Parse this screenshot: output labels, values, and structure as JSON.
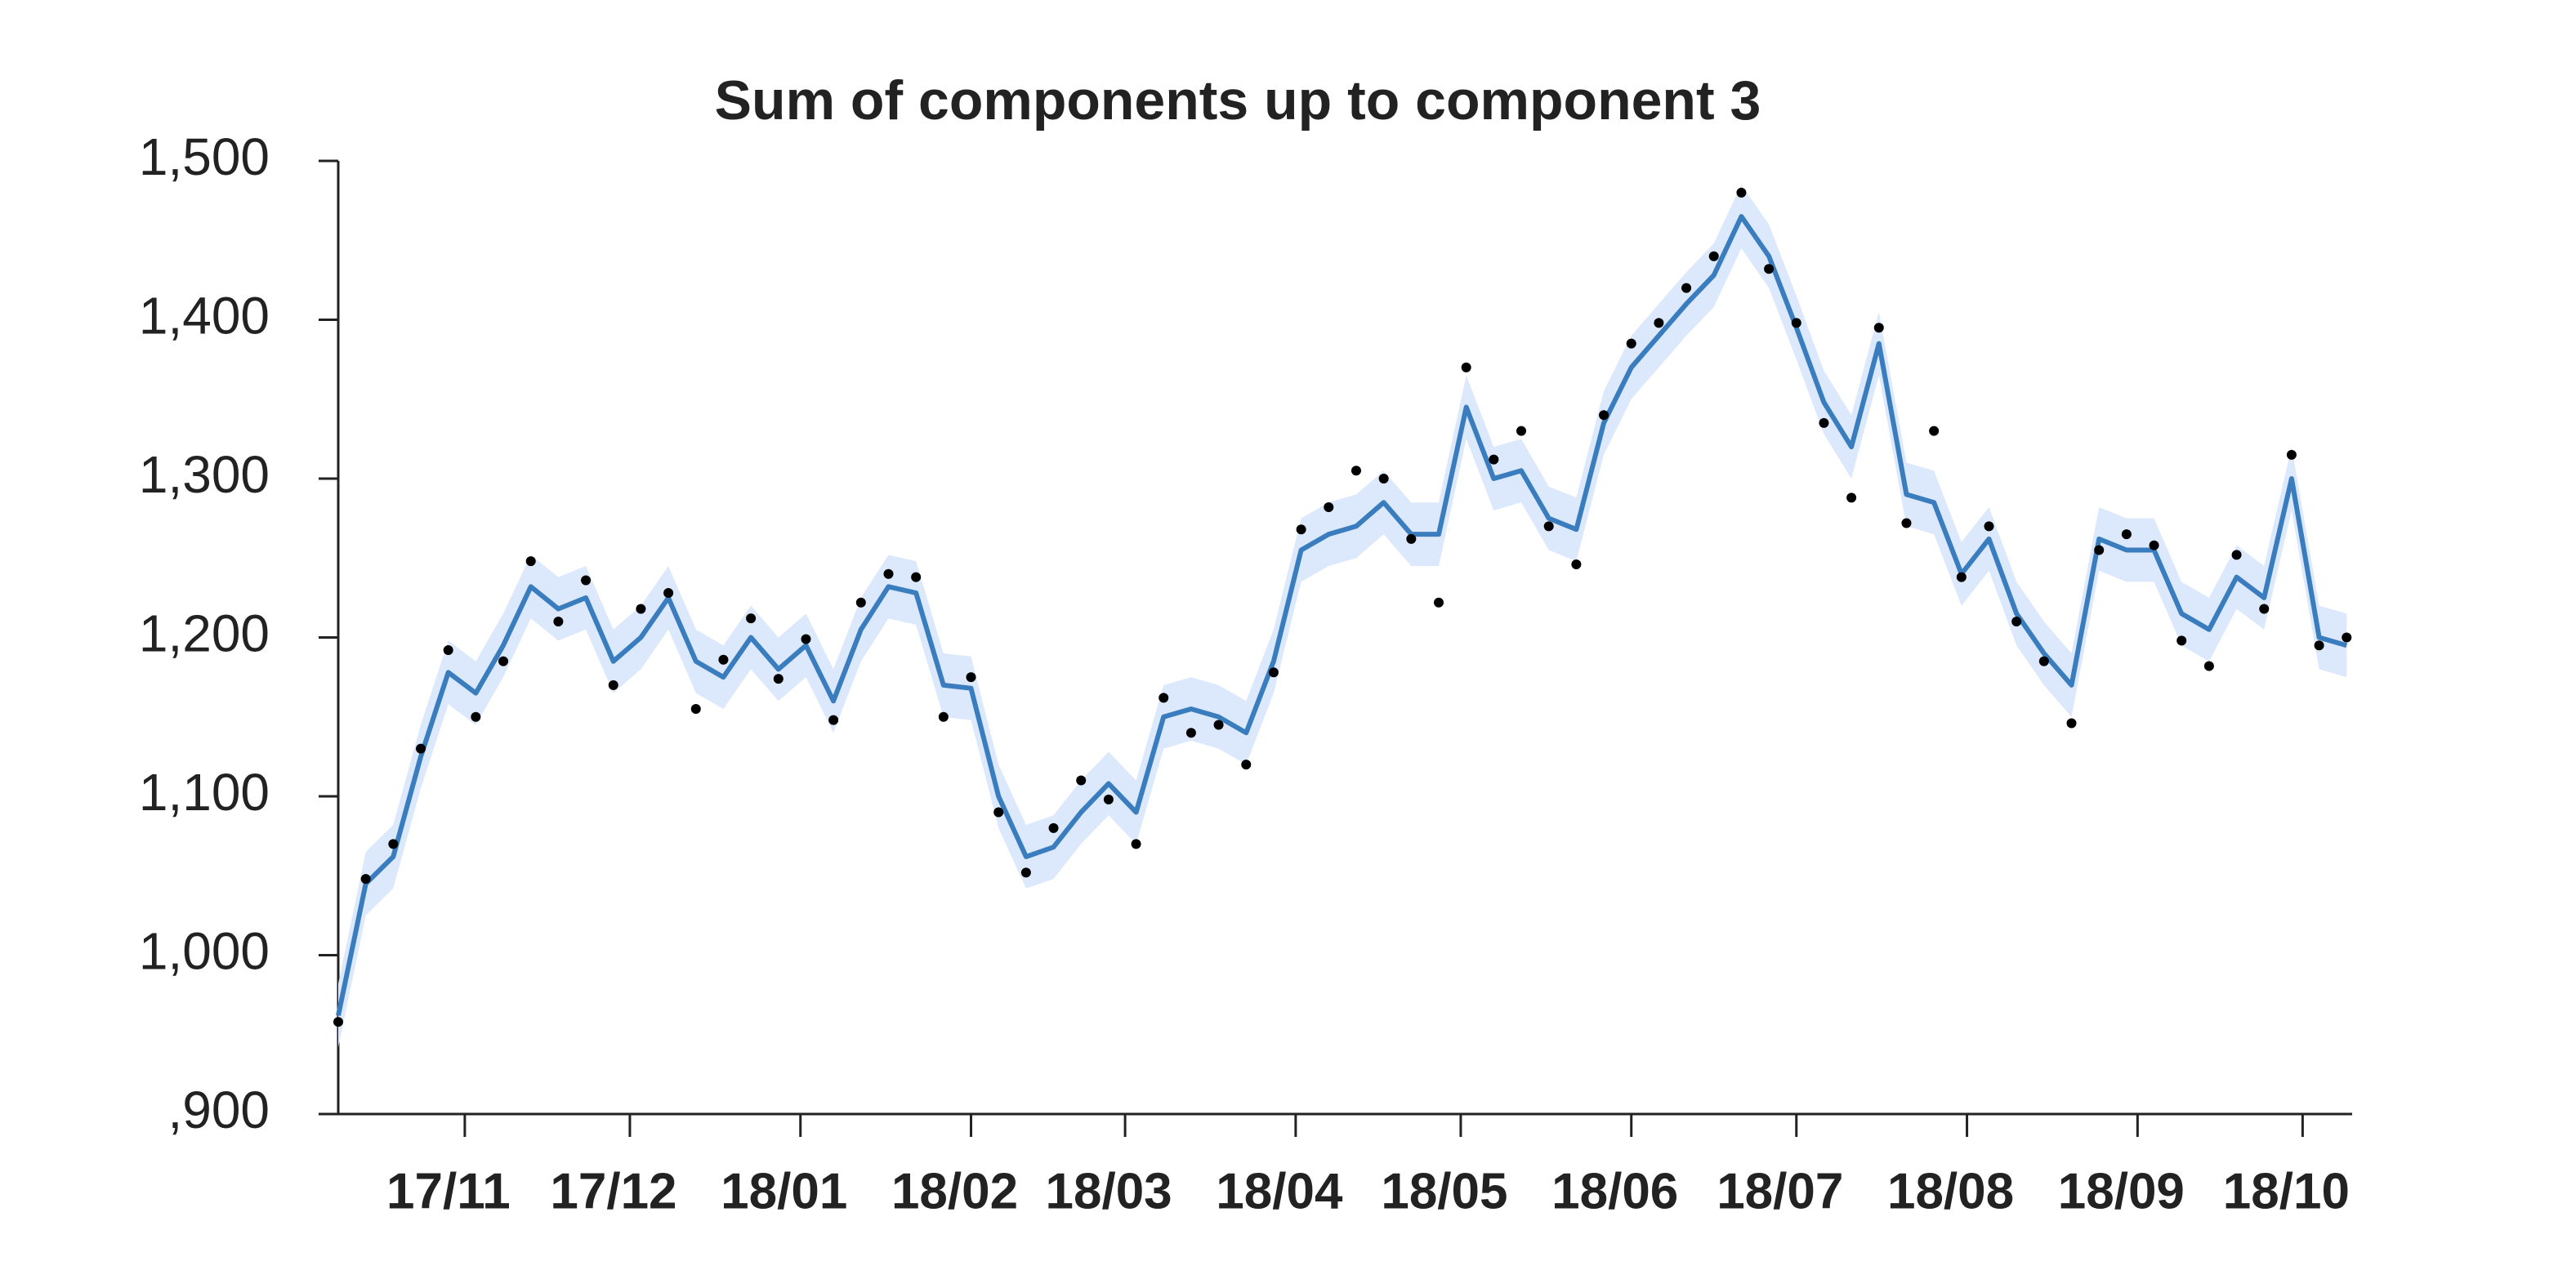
{
  "chart_data": {
    "type": "line",
    "title": "Sum of components up to component 3",
    "x": [
      "2017-10-09",
      "2017-10-14",
      "2017-10-19",
      "2017-10-24",
      "2017-10-29",
      "2017-11-03",
      "2017-11-08",
      "2017-11-13",
      "2017-11-18",
      "2017-11-23",
      "2017-11-28",
      "2017-12-03",
      "2017-12-08",
      "2017-12-13",
      "2017-12-18",
      "2017-12-23",
      "2017-12-28",
      "2018-01-02",
      "2018-01-07",
      "2018-01-12",
      "2018-01-17",
      "2018-01-22",
      "2018-01-27",
      "2018-02-01",
      "2018-02-06",
      "2018-02-11",
      "2018-02-16",
      "2018-02-21",
      "2018-02-26",
      "2018-03-03",
      "2018-03-08",
      "2018-03-13",
      "2018-03-18",
      "2018-03-23",
      "2018-03-28",
      "2018-04-02",
      "2018-04-07",
      "2018-04-12",
      "2018-04-17",
      "2018-04-22",
      "2018-04-27",
      "2018-05-02",
      "2018-05-07",
      "2018-05-12",
      "2018-05-17",
      "2018-05-22",
      "2018-05-27",
      "2018-06-01",
      "2018-06-06",
      "2018-06-11",
      "2018-06-16",
      "2018-06-21",
      "2018-06-26",
      "2018-07-01",
      "2018-07-06",
      "2018-07-11",
      "2018-07-16",
      "2018-07-21",
      "2018-07-26",
      "2018-07-31",
      "2018-08-05",
      "2018-08-10",
      "2018-08-15",
      "2018-08-20",
      "2018-08-25",
      "2018-08-30",
      "2018-09-04",
      "2018-09-09",
      "2018-09-14",
      "2018-09-19",
      "2018-09-24",
      "2018-09-29",
      "2018-10-04",
      "2018-10-09"
    ],
    "series": [
      {
        "type": "band",
        "color": "#dce8fb",
        "lower": [
          942,
          1025,
          1042,
          1105,
          1158,
          1145,
          1175,
          1212,
          1198,
          1205,
          1165,
          1180,
          1205,
          1165,
          1155,
          1180,
          1160,
          1175,
          1140,
          1185,
          1212,
          1208,
          1150,
          1148,
          1080,
          1042,
          1048,
          1070,
          1088,
          1070,
          1130,
          1135,
          1130,
          1120,
          1165,
          1235,
          1245,
          1250,
          1265,
          1245,
          1245,
          1325,
          1280,
          1285,
          1255,
          1248,
          1315,
          1350,
          1370,
          1390,
          1408,
          1445,
          1420,
          1375,
          1328,
          1300,
          1365,
          1270,
          1265,
          1220,
          1242,
          1195,
          1170,
          1150,
          1242,
          1235,
          1235,
          1195,
          1185,
          1218,
          1205,
          1280,
          1180,
          1175
        ],
        "upper": [
          982,
          1065,
          1082,
          1145,
          1198,
          1185,
          1215,
          1252,
          1238,
          1245,
          1205,
          1220,
          1245,
          1205,
          1195,
          1220,
          1200,
          1215,
          1180,
          1225,
          1252,
          1248,
          1190,
          1188,
          1120,
          1082,
          1088,
          1110,
          1128,
          1110,
          1170,
          1175,
          1170,
          1160,
          1205,
          1275,
          1285,
          1290,
          1305,
          1285,
          1285,
          1365,
          1320,
          1325,
          1295,
          1288,
          1355,
          1390,
          1410,
          1430,
          1448,
          1485,
          1460,
          1415,
          1368,
          1340,
          1405,
          1310,
          1305,
          1260,
          1282,
          1235,
          1210,
          1190,
          1282,
          1275,
          1275,
          1235,
          1225,
          1258,
          1245,
          1320,
          1220,
          1215
        ]
      },
      {
        "type": "line",
        "color": "#3a7dbf",
        "values": [
          962,
          1045,
          1062,
          1125,
          1178,
          1165,
          1195,
          1232,
          1218,
          1225,
          1185,
          1200,
          1225,
          1185,
          1175,
          1200,
          1180,
          1195,
          1160,
          1205,
          1232,
          1228,
          1170,
          1168,
          1100,
          1062,
          1068,
          1090,
          1108,
          1090,
          1150,
          1155,
          1150,
          1140,
          1185,
          1255,
          1265,
          1270,
          1285,
          1265,
          1265,
          1345,
          1300,
          1305,
          1275,
          1268,
          1335,
          1370,
          1390,
          1410,
          1428,
          1465,
          1440,
          1395,
          1348,
          1320,
          1385,
          1290,
          1285,
          1240,
          1262,
          1215,
          1190,
          1170,
          1262,
          1255,
          1255,
          1215,
          1205,
          1238,
          1225,
          1300,
          1200,
          1195
        ]
      },
      {
        "type": "scatter",
        "color": "#000000",
        "values": [
          958,
          1048,
          1070,
          1130,
          1192,
          1150,
          1185,
          1248,
          1210,
          1236,
          1170,
          1218,
          1228,
          1155,
          1186,
          1212,
          1174,
          1199,
          1148,
          1222,
          1240,
          1238,
          1150,
          1175,
          1090,
          1052,
          1080,
          1110,
          1098,
          1070,
          1162,
          1140,
          1145,
          1120,
          1178,
          1268,
          1282,
          1305,
          1300,
          1262,
          1222,
          1370,
          1312,
          1330,
          1270,
          1246,
          1340,
          1385,
          1398,
          1420,
          1440,
          1480,
          1432,
          1398,
          1335,
          1288,
          1395,
          1272,
          1330,
          1238,
          1270,
          1210,
          1185,
          1146,
          1255,
          1265,
          1258,
          1198,
          1182,
          1252,
          1218,
          1315,
          1195,
          1200
        ]
      }
    ],
    "xlim": [
      "2017-10-09",
      "2018-10-10"
    ],
    "xticks": [
      {
        "value": "2017-11-01",
        "label": "17/11"
      },
      {
        "value": "2017-12-01",
        "label": "17/12"
      },
      {
        "value": "2018-01-01",
        "label": "18/01"
      },
      {
        "value": "2018-02-01",
        "label": "18/02"
      },
      {
        "value": "2018-03-01",
        "label": "18/03"
      },
      {
        "value": "2018-04-01",
        "label": "18/04"
      },
      {
        "value": "2018-05-01",
        "label": "18/05"
      },
      {
        "value": "2018-06-01",
        "label": "18/06"
      },
      {
        "value": "2018-07-01",
        "label": "18/07"
      },
      {
        "value": "2018-08-01",
        "label": "18/08"
      },
      {
        "value": "2018-09-01",
        "label": "18/09"
      },
      {
        "value": "2018-10-01",
        "label": "18/10"
      }
    ],
    "ylim": [
      900,
      1500
    ],
    "yticks": [
      {
        "value": 900,
        "label": ",900"
      },
      {
        "value": 1000,
        "label": "1,000"
      },
      {
        "value": 1100,
        "label": "1,100"
      },
      {
        "value": 1200,
        "label": "1,200"
      },
      {
        "value": 1300,
        "label": "1,300"
      },
      {
        "value": 1400,
        "label": "1,400"
      },
      {
        "value": 1500,
        "label": "1,500"
      }
    ]
  }
}
